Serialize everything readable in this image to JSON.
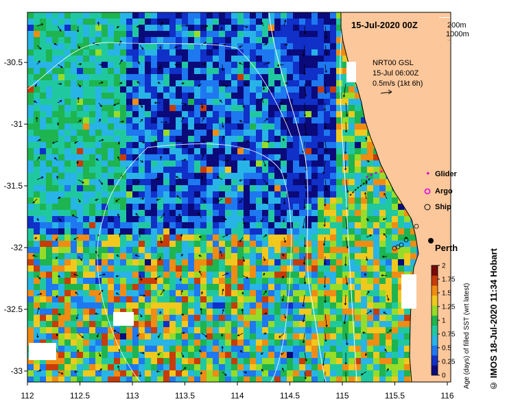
{
  "header": {
    "date": "15-Jul-2020 00Z"
  },
  "isobath_legend": {
    "shallow": "200m",
    "deep": "1000m"
  },
  "current_info": {
    "source": "NRT00 GSL",
    "time": "15-Jul 06:00Z",
    "scale": "0.5m/s (1kt 6h)"
  },
  "legend": {
    "glider": "Glider",
    "argo": "Argo",
    "ship": "Ship",
    "colors": {
      "glider": "#d000d0",
      "argo": "#e000e0",
      "ship": "#000000"
    }
  },
  "place": {
    "name": "Perth"
  },
  "axes": {
    "x_ticks": [
      "112",
      "112.5",
      "113",
      "113.5",
      "114",
      "114.5",
      "115",
      "115.5",
      "116"
    ],
    "y_ticks": [
      "-30.5",
      "-31",
      "-31.5",
      "-32",
      "-32.5",
      "-33"
    ]
  },
  "colorbar": {
    "label": "Age (days) of filled SST (wrt latest)",
    "ticks": [
      "0",
      "0.25",
      "0.5",
      "0.75",
      "1",
      "1.25",
      "1.5",
      "1.75",
      "2"
    ],
    "colors": [
      "#0a0a7a",
      "#1030c8",
      "#1e78f0",
      "#28b4e6",
      "#20c8a0",
      "#1eb450",
      "#96dc28",
      "#f0c81e",
      "#f08c14",
      "#c83c0a",
      "#780a0a"
    ]
  },
  "map_colors": {
    "land": "#fbc79b",
    "coast": "#000000",
    "isobath": "#ffffff"
  },
  "credit": "© IMOS 18-Jul-2020 11:34 Hobart"
}
